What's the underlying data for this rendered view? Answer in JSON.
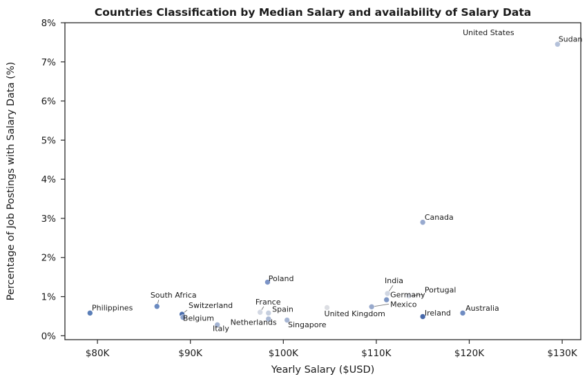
{
  "chart_data": {
    "type": "scatter",
    "title": "Countries Classification by Median Salary and availability of Salary Data",
    "xlabel": "Yearly Salary ($USD)",
    "ylabel": "Percentage of Job Postings with Salary Data (%)",
    "xlim": [
      76500,
      132000
    ],
    "ylim": [
      -0.1,
      8
    ],
    "xticks": [
      {
        "value": 80000,
        "label": "$80K"
      },
      {
        "value": 90000,
        "label": "$90K"
      },
      {
        "value": 100000,
        "label": "$100K"
      },
      {
        "value": 110000,
        "label": "$110K"
      },
      {
        "value": 120000,
        "label": "$120K"
      },
      {
        "value": 130000,
        "label": "$130K"
      }
    ],
    "yticks": [
      {
        "value": 0,
        "label": "0%"
      },
      {
        "value": 1,
        "label": "1%"
      },
      {
        "value": 2,
        "label": "2%"
      },
      {
        "value": 3,
        "label": "3%"
      },
      {
        "value": 4,
        "label": "4%"
      },
      {
        "value": 5,
        "label": "5%"
      },
      {
        "value": 6,
        "label": "6%"
      },
      {
        "value": 7,
        "label": "7%"
      },
      {
        "value": 8,
        "label": "8%"
      }
    ],
    "grid": false,
    "points": [
      {
        "country": "Philippines",
        "x": 79200,
        "y": 0.58,
        "color": "#5b7fb8",
        "label_x": 79400,
        "label_y": 0.65
      },
      {
        "country": "South Africa",
        "x": 86400,
        "y": 0.75,
        "color": "#6a8ac0",
        "label_x": 85700,
        "label_y": 0.97,
        "leader": true
      },
      {
        "country": "Switzerland",
        "x": 89100,
        "y": 0.55,
        "color": "#4c6fae",
        "label_x": 89800,
        "label_y": 0.71,
        "leader": true
      },
      {
        "country": "Belgium",
        "x": 89200,
        "y": 0.47,
        "color": "#8ea3cc",
        "label_x": 89200,
        "label_y": 0.38
      },
      {
        "country": "Italy",
        "x": 92900,
        "y": 0.28,
        "color": "#a3b3d2",
        "label_x": 92400,
        "label_y": 0.12
      },
      {
        "country": "Netherlands",
        "x": 98400,
        "y": 0.43,
        "color": "#a9b8d4",
        "label_x": 94300,
        "label_y": 0.28
      },
      {
        "country": "France",
        "x": 97500,
        "y": 0.6,
        "color": "#d3d8e3",
        "label_x": 97000,
        "label_y": 0.8,
        "leader": true
      },
      {
        "country": "Spain",
        "x": 98400,
        "y": 0.58,
        "color": "#c6cfdf",
        "label_x": 98800,
        "label_y": 0.61
      },
      {
        "country": "Poland",
        "x": 98300,
        "y": 1.37,
        "color": "#7b93c6",
        "label_x": 98400,
        "label_y": 1.4
      },
      {
        "country": "Singapore",
        "x": 100400,
        "y": 0.4,
        "color": "#a6b5d3",
        "label_x": 100500,
        "label_y": 0.22
      },
      {
        "country": "United Kingdom",
        "x": 104700,
        "y": 0.72,
        "color": "#dcdee3",
        "label_x": 104400,
        "label_y": 0.5
      },
      {
        "country": "India",
        "x": 111200,
        "y": 1.08,
        "color": "#d0d6e2",
        "label_x": 110900,
        "label_y": 1.34,
        "leader": true
      },
      {
        "country": "Portugal",
        "x": 113500,
        "y": 1.02,
        "color": "#dde1ea",
        "label_x": 115200,
        "label_y": 1.11,
        "leader": true
      },
      {
        "country": "Germany",
        "x": 111100,
        "y": 0.92,
        "color": "#7d96c4",
        "label_x": 111500,
        "label_y": 0.98
      },
      {
        "country": "Mexico",
        "x": 109500,
        "y": 0.74,
        "color": "#98a9cc",
        "label_x": 111500,
        "label_y": 0.74,
        "leader": true
      },
      {
        "country": "Ireland",
        "x": 115000,
        "y": 0.49,
        "color": "#4869aa",
        "label_x": 115200,
        "label_y": 0.52
      },
      {
        "country": "Australia",
        "x": 119300,
        "y": 0.58,
        "color": "#6f8cc2",
        "label_x": 119600,
        "label_y": 0.64
      },
      {
        "country": "Canada",
        "x": 115000,
        "y": 2.9,
        "color": "#98aacf",
        "label_x": 115200,
        "label_y": 2.96
      },
      {
        "country": "Sudan",
        "x": 129500,
        "y": 7.45,
        "color": "#b4c1da",
        "label_x": 129600,
        "label_y": 7.52
      },
      {
        "country": "United States",
        "label_only": true,
        "label_x": 119300,
        "label_y": 7.68
      }
    ]
  }
}
